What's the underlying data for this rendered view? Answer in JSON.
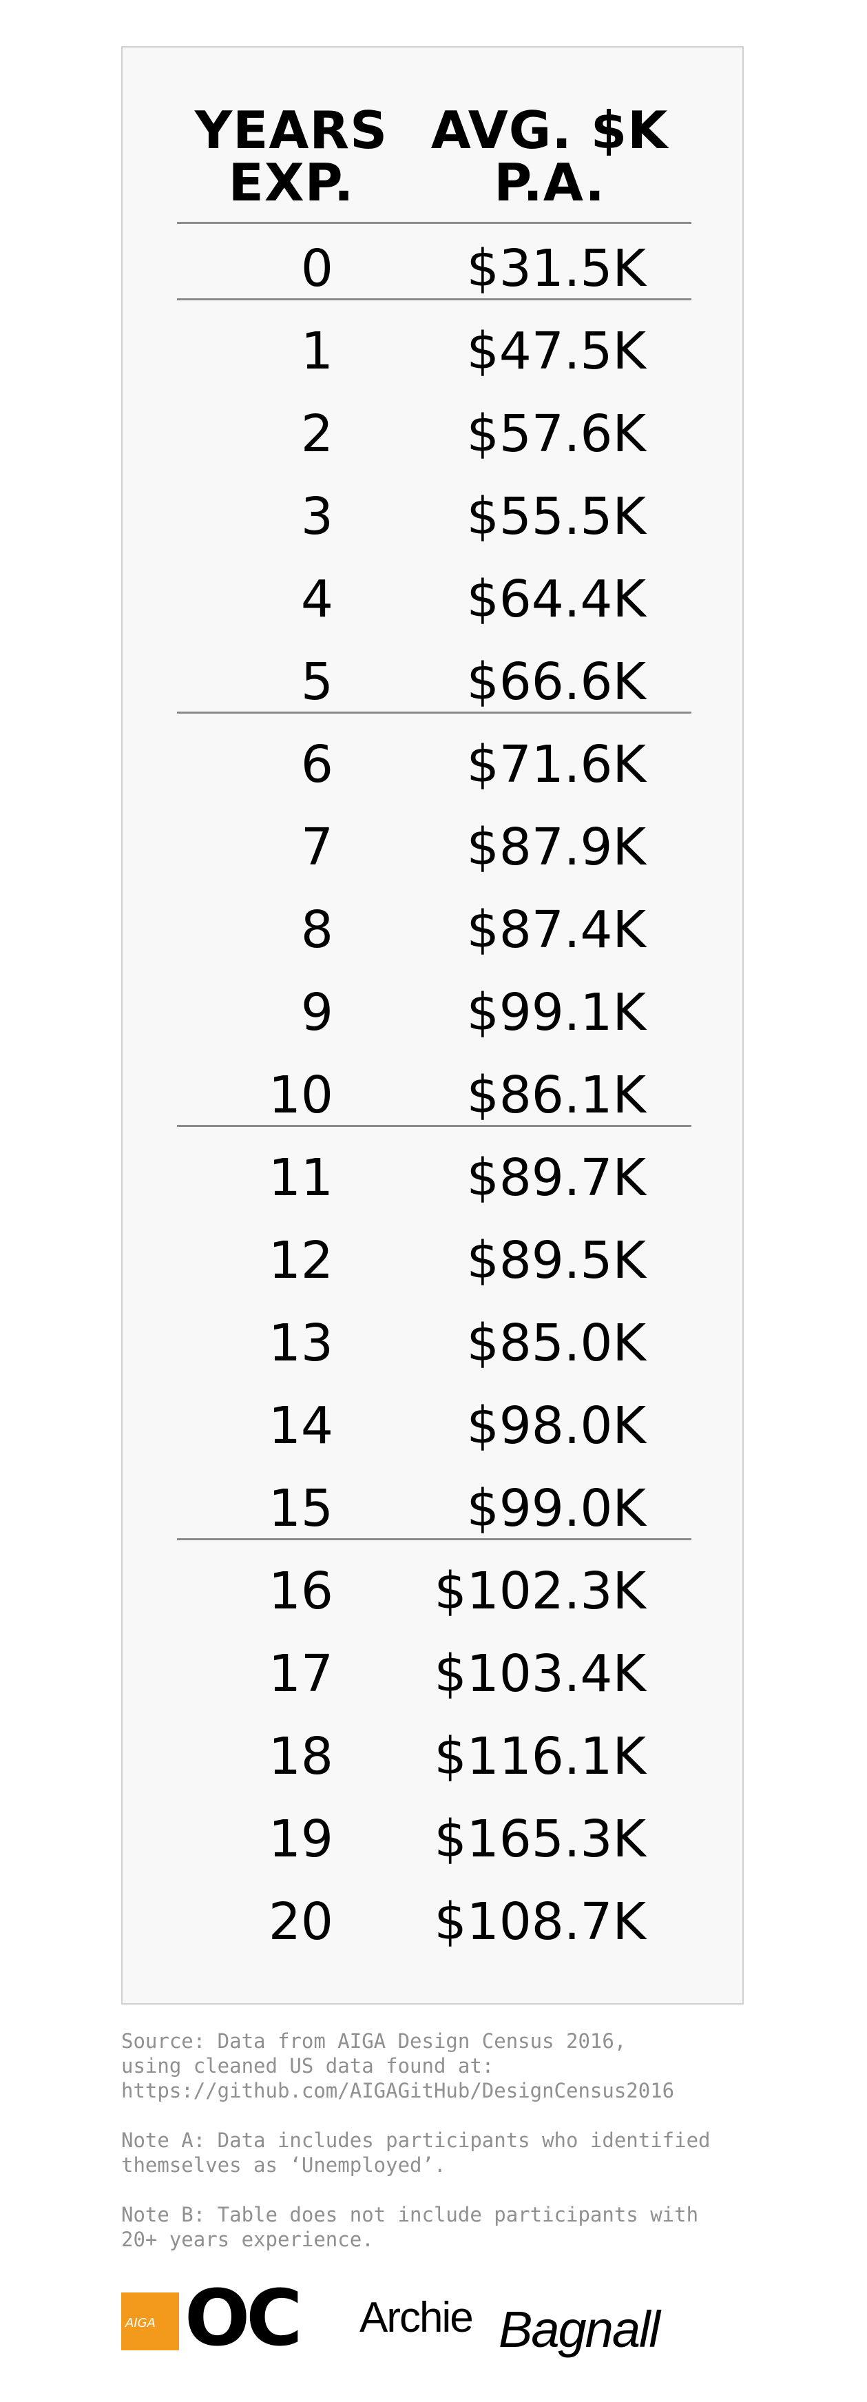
{
  "chart_data": {
    "type": "table",
    "columns": [
      "YEARS\nEXP.",
      "AVG. $K\nP.A."
    ],
    "rows": [
      {
        "year": "0",
        "salary": "$31.5K"
      },
      {
        "year": "1",
        "salary": "$47.5K"
      },
      {
        "year": "2",
        "salary": "$57.6K"
      },
      {
        "year": "3",
        "salary": "$55.5K"
      },
      {
        "year": "4",
        "salary": "$64.4K"
      },
      {
        "year": "5",
        "salary": "$66.6K"
      },
      {
        "year": "6",
        "salary": "$71.6K"
      },
      {
        "year": "7",
        "salary": "$87.9K"
      },
      {
        "year": "8",
        "salary": "$87.4K"
      },
      {
        "year": "9",
        "salary": "$99.1K"
      },
      {
        "year": "10",
        "salary": "$86.1K"
      },
      {
        "year": "11",
        "salary": "$89.7K"
      },
      {
        "year": "12",
        "salary": "$89.5K"
      },
      {
        "year": "13",
        "salary": "$85.0K"
      },
      {
        "year": "14",
        "salary": "$98.0K"
      },
      {
        "year": "15",
        "salary": "$99.0K"
      },
      {
        "year": "16",
        "salary": "$102.3K"
      },
      {
        "year": "17",
        "salary": "$103.4K"
      },
      {
        "year": "18",
        "salary": "$116.1K"
      },
      {
        "year": "19",
        "salary": "$165.3K"
      },
      {
        "year": "20",
        "salary": "$108.7K"
      }
    ],
    "x": [
      0,
      1,
      2,
      3,
      4,
      5,
      6,
      7,
      8,
      9,
      10,
      11,
      12,
      13,
      14,
      15,
      16,
      17,
      18,
      19,
      20
    ],
    "values": [
      31.5,
      47.5,
      57.6,
      55.5,
      64.4,
      66.6,
      71.6,
      87.9,
      87.4,
      99.1,
      86.1,
      89.7,
      89.5,
      85.0,
      98.0,
      99.0,
      102.3,
      103.4,
      116.1,
      165.3,
      108.7
    ],
    "group_rules_after_years": [
      0,
      5,
      10,
      15
    ]
  },
  "notes": {
    "source": "Source: Data from AIGA Design Census 2016,\nusing cleaned US data found at:\nhttps://github.com/AIGAGitHub/DesignCensus2016",
    "note_a": "Note A: Data includes participants who identified\nthemselves as ‘Unemployed’.",
    "note_b": "Note B: Table does not include participants with\n20+ years experience."
  },
  "logos": {
    "aiga": "AIGA",
    "oc": "OC",
    "author_first": "Archie",
    "author_last": "Bagnall"
  },
  "colors": {
    "panel_bg": "#f7f8f7",
    "panel_border": "#cfd0cf",
    "rule": "#8a8b8a",
    "note_text": "#8f908f",
    "aiga_orange": "#f39a1c"
  }
}
